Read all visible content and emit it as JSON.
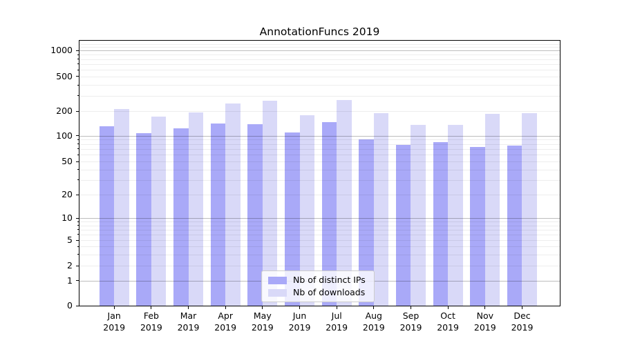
{
  "chart_data": {
    "type": "bar",
    "title": "AnnotationFuncs 2019",
    "categories": [
      "Jan",
      "Feb",
      "Mar",
      "Apr",
      "May",
      "Jun",
      "Jul",
      "Aug",
      "Sep",
      "Oct",
      "Nov",
      "Dec"
    ],
    "x_tick_second_line": "2019",
    "series": [
      {
        "name": "Nb of distinct IPs",
        "color": "#a9a9f8",
        "values": [
          130,
          107,
          123,
          140,
          138,
          109,
          148,
          91,
          78,
          85,
          74,
          77
        ]
      },
      {
        "name": "Nb of downloads",
        "color": "#d9d9f8",
        "values": [
          210,
          170,
          193,
          245,
          262,
          180,
          268,
          190,
          135,
          135,
          184,
          188
        ]
      }
    ],
    "y_tick_labels": [
      "0",
      "1",
      "2",
      "5",
      "10",
      "20",
      "50",
      "100",
      "200",
      "500",
      "1000"
    ],
    "y_ticks": [
      0,
      1,
      2,
      5,
      10,
      20,
      50,
      100,
      200,
      500,
      1000
    ],
    "y_scale": "symlog",
    "ylim": [
      0,
      1300
    ],
    "grid": true,
    "grid_major_values": [
      1,
      10,
      100,
      1000
    ],
    "grid_minor_values": [
      2,
      3,
      4,
      5,
      6,
      7,
      8,
      9,
      20,
      30,
      40,
      50,
      60,
      70,
      80,
      90,
      200,
      300,
      400,
      500,
      600,
      700,
      800,
      900,
      1100,
      1200
    ],
    "legend_position": "lower center"
  },
  "colors": {
    "bar_ips": "#a9a9f8",
    "bar_downloads": "#d9d9f8",
    "grid_major": "rgba(0,0,0,0.26)",
    "grid_minor": "rgba(0,0,0,0.07)",
    "spine": "#000000",
    "text": "#000000",
    "legend_border": "#cccccc"
  }
}
